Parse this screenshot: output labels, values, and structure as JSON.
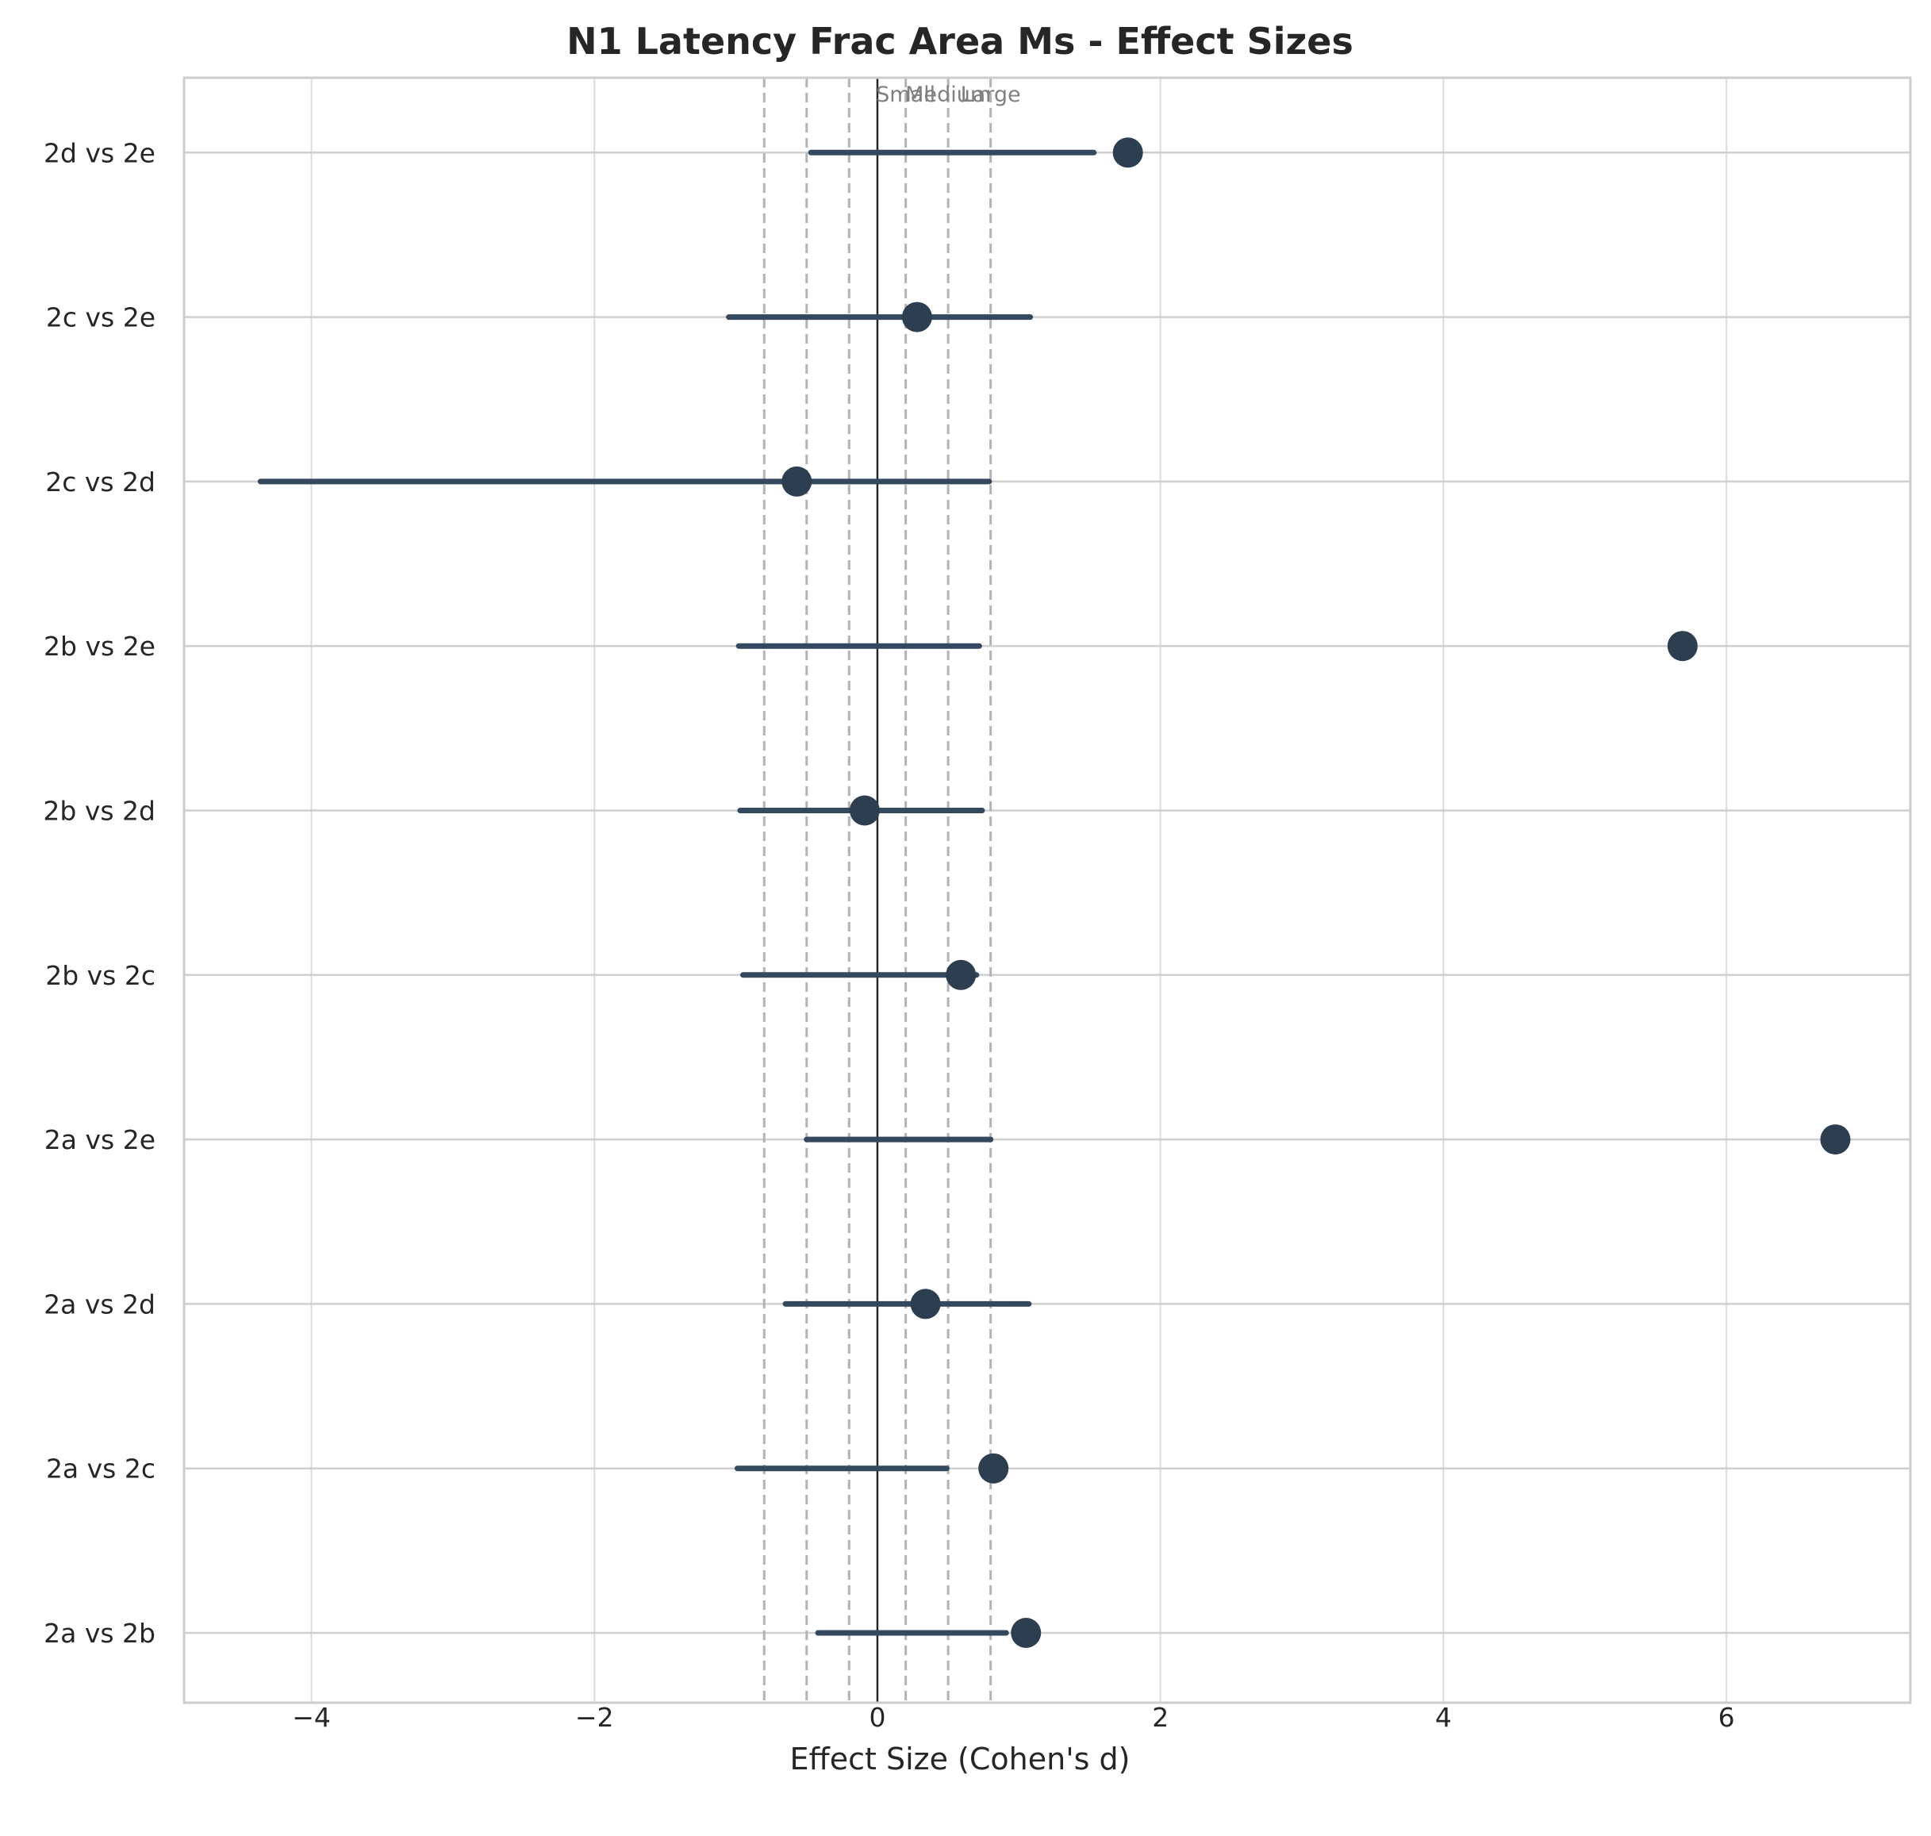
{
  "chart_data": {
    "type": "scatter",
    "title": "N1 Latency Frac Area Ms - Effect Sizes",
    "xlabel": "Effect Size (Cohen's d)",
    "ylabel": "",
    "xlim": [
      -4.9,
      7.3
    ],
    "xticks": [
      -4,
      -2,
      0,
      2,
      4,
      6
    ],
    "xtick_labels": [
      "−4",
      "−2",
      "0",
      "2",
      "4",
      "6"
    ],
    "grid": true,
    "categories": [
      "2a vs 2b",
      "2a vs 2c",
      "2a vs 2d",
      "2a vs 2e",
      "2b vs 2c",
      "2b vs 2d",
      "2b vs 2e",
      "2c vs 2d",
      "2c vs 2e",
      "2d vs 2e"
    ],
    "values": [
      1.05,
      0.82,
      0.34,
      6.77,
      0.59,
      -0.09,
      5.69,
      -0.57,
      0.28,
      1.77
    ],
    "ci_lower": [
      -0.42,
      -0.99,
      -0.65,
      -0.5,
      -0.95,
      -0.97,
      -0.98,
      -4.36,
      -1.05,
      -0.47
    ],
    "ci_upper": [
      0.91,
      0.49,
      1.07,
      0.8,
      0.7,
      0.74,
      0.72,
      0.79,
      1.08,
      1.53
    ],
    "reference_lines": [
      {
        "value": -0.8,
        "style": "dashed"
      },
      {
        "value": -0.5,
        "style": "dashed"
      },
      {
        "value": -0.2,
        "style": "dashed"
      },
      {
        "value": 0,
        "style": "solid"
      },
      {
        "value": 0.2,
        "style": "dashed"
      },
      {
        "value": 0.5,
        "style": "dashed"
      },
      {
        "value": 0.8,
        "style": "dashed"
      }
    ],
    "reference_labels": [
      {
        "text": "Small",
        "value": 0.2
      },
      {
        "text": "Medium",
        "value": 0.5
      },
      {
        "text": "Large",
        "value": 0.8
      }
    ],
    "colors": {
      "point": "#2c3e50",
      "ci": "#34495e",
      "zero_line": "#262626",
      "ref_line": "#b3b3b3",
      "grid": "#dcdcdc",
      "frame": "#cccccc"
    }
  }
}
